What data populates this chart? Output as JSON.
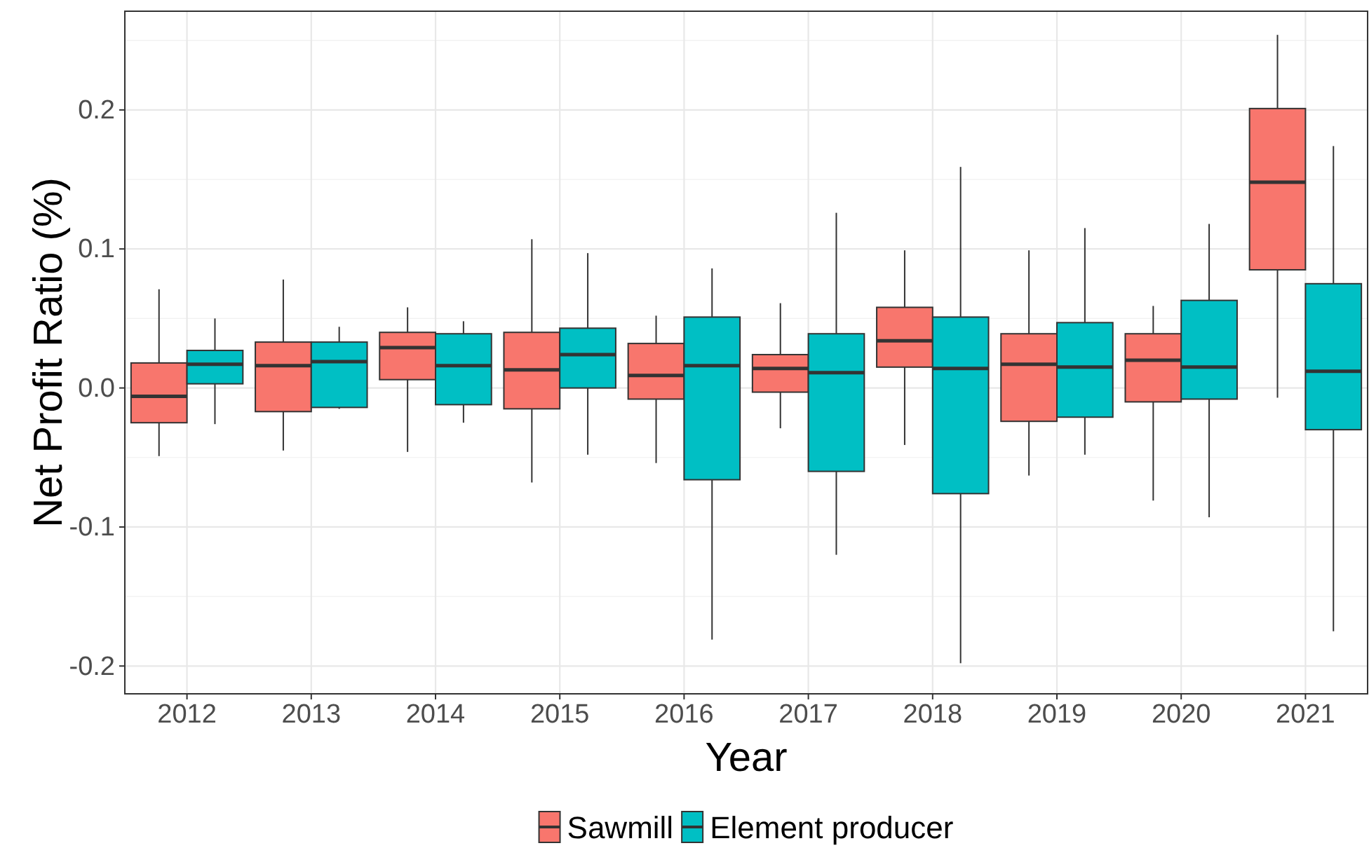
{
  "chart_data": {
    "type": "box",
    "xlabel": "Year",
    "ylabel": "Net Profit Ratio (%)",
    "categories": [
      "2012",
      "2013",
      "2014",
      "2015",
      "2016",
      "2017",
      "2018",
      "2019",
      "2020",
      "2021"
    ],
    "ylim": [
      -0.22,
      0.271
    ],
    "yticks": [
      -0.2,
      -0.1,
      {
        "value": 0,
        "label": "0.0"
      },
      0.1,
      0.2
    ],
    "grid": true,
    "legend": "bottom",
    "series": [
      {
        "name": "Sawmill",
        "color": "#f8766d",
        "boxes": [
          {
            "low": -0.049,
            "q1": -0.025,
            "median": -0.006,
            "q3": 0.018,
            "high": 0.071
          },
          {
            "low": -0.045,
            "q1": -0.017,
            "median": 0.016,
            "q3": 0.033,
            "high": 0.078
          },
          {
            "low": -0.046,
            "q1": 0.006,
            "median": 0.029,
            "q3": 0.04,
            "high": 0.058
          },
          {
            "low": -0.068,
            "q1": -0.015,
            "median": 0.013,
            "q3": 0.04,
            "high": 0.107
          },
          {
            "low": -0.054,
            "q1": -0.008,
            "median": 0.009,
            "q3": 0.032,
            "high": 0.052
          },
          {
            "low": -0.029,
            "q1": -0.003,
            "median": 0.014,
            "q3": 0.024,
            "high": 0.061
          },
          {
            "low": -0.041,
            "q1": 0.015,
            "median": 0.034,
            "q3": 0.058,
            "high": 0.099
          },
          {
            "low": -0.063,
            "q1": -0.024,
            "median": 0.017,
            "q3": 0.039,
            "high": 0.099
          },
          {
            "low": -0.081,
            "q1": -0.01,
            "median": 0.02,
            "q3": 0.039,
            "high": 0.059
          },
          {
            "low": -0.007,
            "q1": 0.085,
            "median": 0.148,
            "q3": 0.201,
            "high": 0.254
          }
        ]
      },
      {
        "name": "Element producer",
        "color": "#00bfc4",
        "boxes": [
          {
            "low": -0.026,
            "q1": 0.003,
            "median": 0.017,
            "q3": 0.027,
            "high": 0.05
          },
          {
            "low": -0.015,
            "q1": -0.014,
            "median": 0.019,
            "q3": 0.033,
            "high": 0.044
          },
          {
            "low": -0.025,
            "q1": -0.012,
            "median": 0.016,
            "q3": 0.039,
            "high": 0.048
          },
          {
            "low": -0.048,
            "q1": 0.0,
            "median": 0.024,
            "q3": 0.043,
            "high": 0.097
          },
          {
            "low": -0.181,
            "q1": -0.066,
            "median": 0.016,
            "q3": 0.051,
            "high": 0.086
          },
          {
            "low": -0.12,
            "q1": -0.06,
            "median": 0.011,
            "q3": 0.039,
            "high": 0.126
          },
          {
            "low": -0.198,
            "q1": -0.076,
            "median": 0.014,
            "q3": 0.051,
            "high": 0.159
          },
          {
            "low": -0.048,
            "q1": -0.021,
            "median": 0.015,
            "q3": 0.047,
            "high": 0.115
          },
          {
            "low": -0.093,
            "q1": -0.008,
            "median": 0.015,
            "q3": 0.063,
            "high": 0.118
          },
          {
            "low": -0.175,
            "q1": -0.03,
            "median": 0.012,
            "q3": 0.075,
            "high": 0.174
          }
        ]
      }
    ]
  }
}
